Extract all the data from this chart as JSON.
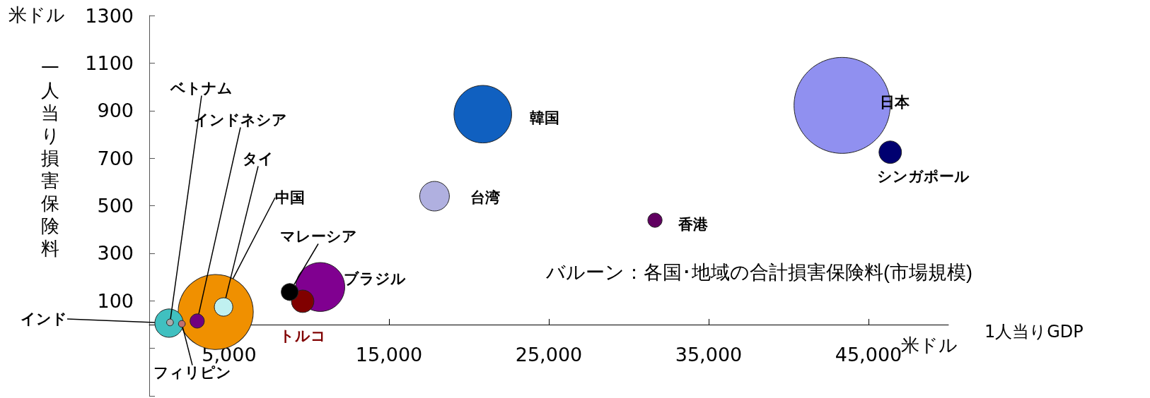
{
  "chart_data": {
    "type": "bubble",
    "xlabel": "1人当りGDP",
    "ylabel": "一人当り損害保険料",
    "annotations": [
      "米ドル",
      "米ドル",
      "バルーン：各国･地域の合計損害保険料(市場規模)"
    ],
    "xlim": [
      0,
      50000
    ],
    "xticks": [
      {
        "value": 5000,
        "label": "5,000"
      },
      {
        "value": 15000,
        "label": "15,000"
      },
      {
        "value": 25000,
        "label": "25,000"
      },
      {
        "value": 35000,
        "label": "35,000"
      },
      {
        "value": 45000,
        "label": "45,000"
      }
    ],
    "ylim": [
      -300,
      1300
    ],
    "yticks": [
      {
        "value": -300,
        "label": null
      },
      {
        "value": -100,
        "label": null
      },
      100,
      300,
      500,
      700,
      900,
      1100,
      1300
    ],
    "grid": false,
    "legend": false,
    "series": [
      {
        "name": "インド",
        "color": "#40c0c0",
        "x": [
          1240
        ],
        "values": [
          6
        ],
        "sizes": [
          0.087
        ]
      },
      {
        "name": "フィリピン",
        "color": "#c07070",
        "x": [
          2040
        ],
        "values": [
          3
        ],
        "sizes": [
          0.005
        ]
      },
      {
        "name": "ベトナム",
        "color": "#aaaaaa",
        "x": [
          1300
        ],
        "values": [
          9
        ],
        "sizes": [
          0.005
        ]
      },
      {
        "name": "インドネシア",
        "color": "#700080",
        "x": [
          3000
        ],
        "values": [
          15
        ],
        "sizes": [
          0.022
        ]
      },
      {
        "name": "タイ",
        "color": "#c0f0f0",
        "x": [
          4650
        ],
        "values": [
          74
        ],
        "sizes": [
          0.037
        ]
      },
      {
        "name": "中国",
        "color": "#f09000",
        "x": [
          4160
        ],
        "values": [
          53
        ],
        "sizes": [
          0.61
        ]
      },
      {
        "name": "マレーシア",
        "color": "#000000",
        "x": [
          8790
        ],
        "values": [
          137
        ],
        "sizes": [
          0.031
        ]
      },
      {
        "name": "トルコ",
        "color": "#800000",
        "x": [
          9600
        ],
        "values": [
          98
        ],
        "sizes": [
          0.055
        ]
      },
      {
        "name": "ブラジル",
        "color": "#800090",
        "x": [
          10700
        ],
        "values": [
          158
        ],
        "sizes": [
          0.26
        ]
      },
      {
        "name": "台湾",
        "color": "#b0b0e0",
        "x": [
          17850
        ],
        "values": [
          540
        ],
        "sizes": [
          0.095
        ]
      },
      {
        "name": "韓国",
        "color": "#1060c0",
        "x": [
          20870
        ],
        "values": [
          885
        ],
        "sizes": [
          0.36
        ]
      },
      {
        "name": "香港",
        "color": "#600060",
        "x": [
          31640
        ],
        "values": [
          439
        ],
        "sizes": [
          0.022
        ]
      },
      {
        "name": "日本",
        "color": "#9090f0",
        "x": [
          43350
        ],
        "values": [
          922
        ],
        "sizes": [
          1
        ]
      },
      {
        "name": "シンガポール",
        "color": "#000070",
        "x": [
          46360
        ],
        "values": [
          725
        ],
        "sizes": [
          0.055
        ]
      }
    ]
  }
}
